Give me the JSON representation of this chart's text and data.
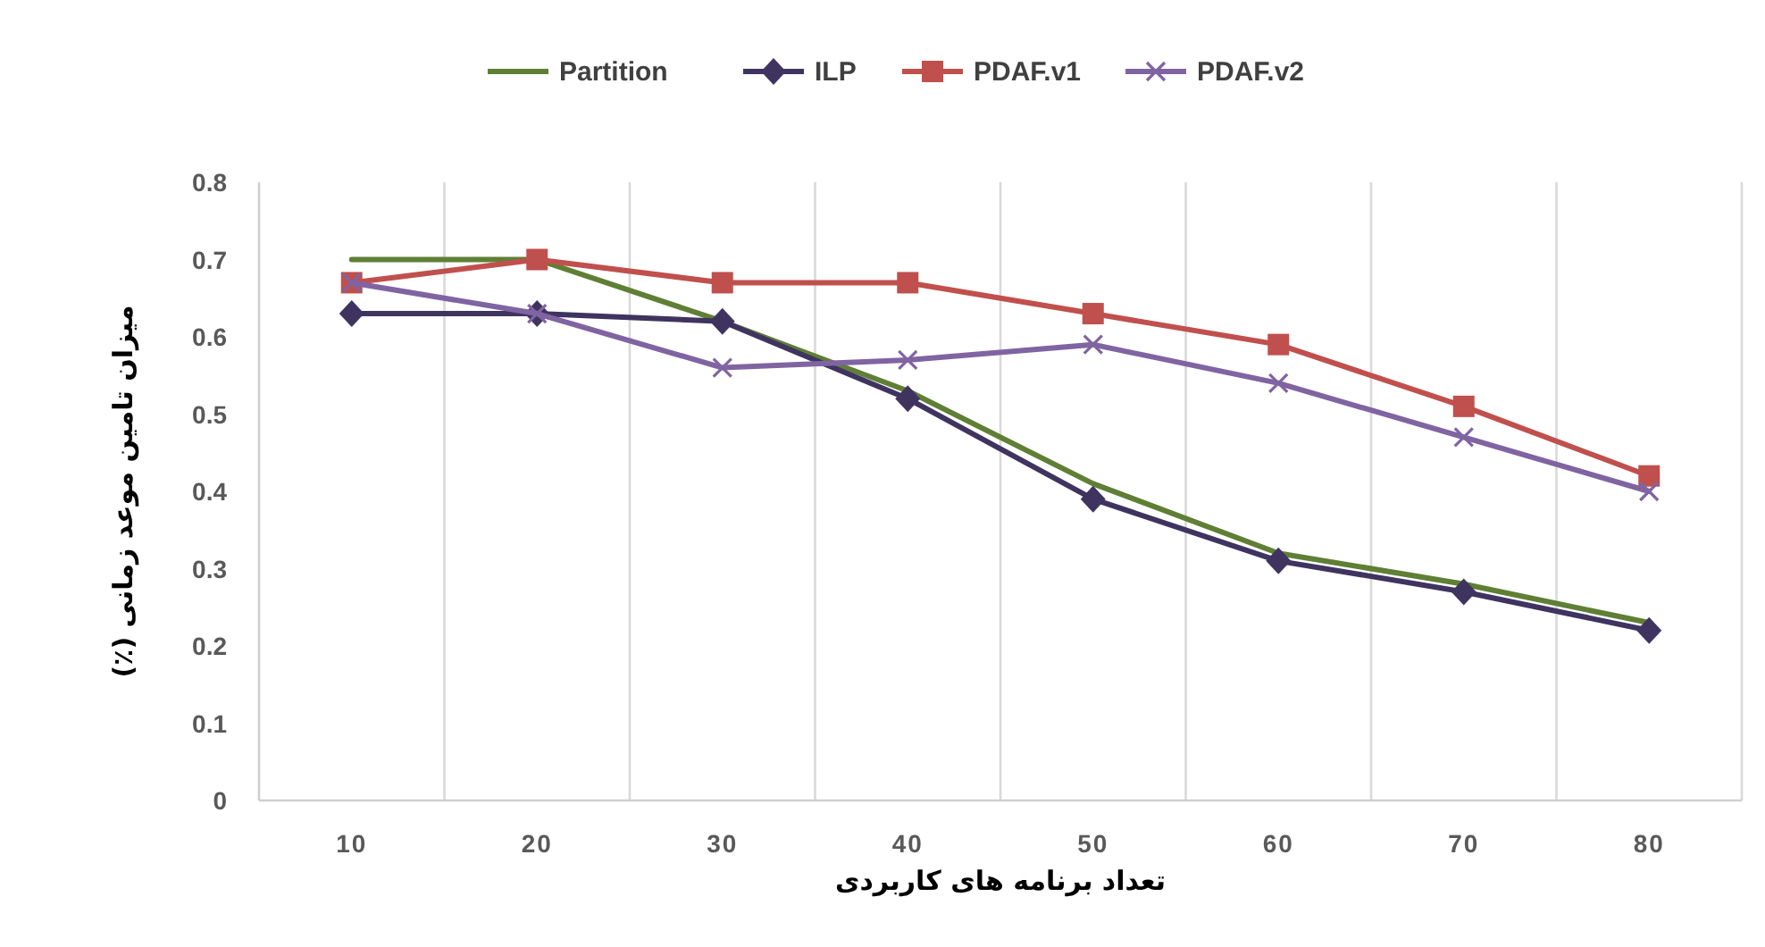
{
  "chart_data": {
    "type": "line",
    "xlabel": "تعداد برنامه های کاربردی",
    "ylabel": "میزان تامین موعد زمانی (٪)",
    "categories": [
      "10",
      "20",
      "30",
      "40",
      "50",
      "60",
      "70",
      "80"
    ],
    "series": [
      {
        "name": "Partition",
        "color": "#5f7f35",
        "marker": "none",
        "values": [
          0.7,
          0.7,
          0.62,
          0.53,
          0.41,
          0.32,
          0.28,
          0.23
        ]
      },
      {
        "name": "ILP",
        "color": "#3f3460",
        "marker": "diamond",
        "values": [
          0.63,
          0.63,
          0.62,
          0.52,
          0.39,
          0.31,
          0.27,
          0.22
        ]
      },
      {
        "name": "PDAF.v1",
        "color": "#c0504d",
        "marker": "square",
        "values": [
          0.67,
          0.7,
          0.67,
          0.67,
          0.63,
          0.59,
          0.51,
          0.42
        ]
      },
      {
        "name": "PDAF.v2",
        "color": "#8064a2",
        "marker": "cross",
        "values": [
          0.67,
          0.63,
          0.56,
          0.57,
          0.59,
          0.54,
          0.47,
          0.4
        ]
      }
    ],
    "ylim": [
      0,
      0.8
    ],
    "yticks": [
      0,
      0.1,
      0.2,
      0.3,
      0.4,
      0.5,
      0.6,
      0.7,
      0.8
    ],
    "grid": "x",
    "legend": "top",
    "line_style": "solid"
  }
}
